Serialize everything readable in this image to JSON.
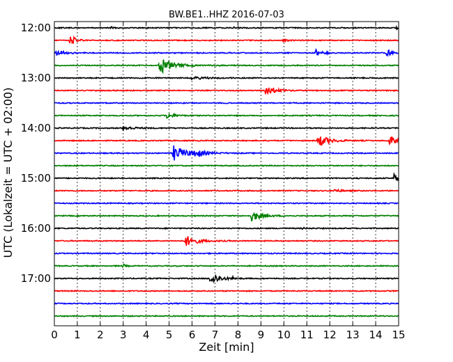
{
  "chart_data": {
    "type": "line",
    "title": "BW.BE1..HHZ 2016-07-03",
    "xlabel": "Zeit  [min]",
    "ylabel": "UTC (Lokalzeit = UTC + 02:00)",
    "xlim": [
      0,
      15
    ],
    "x_ticks": [
      "0",
      "1",
      "2",
      "3",
      "4",
      "5",
      "6",
      "7",
      "8",
      "9",
      "10",
      "11",
      "12",
      "13",
      "14",
      "15"
    ],
    "y_ticks": [
      "12:00",
      "13:00",
      "14:00",
      "15:00",
      "16:00",
      "17:00"
    ],
    "grid": true,
    "colors": [
      "#000000",
      "#ff0000",
      "#0000ff",
      "#008000"
    ],
    "traces": [
      {
        "start": "12:00",
        "events": [
          {
            "t": 2.5,
            "amp": 0.25,
            "dur": 0.05
          },
          {
            "t": 7.8,
            "amp": 0.1,
            "dur": 0.2
          },
          {
            "t": 14.9,
            "amp": 0.3,
            "dur": 0.05
          }
        ]
      },
      {
        "start": "12:15",
        "events": [
          {
            "t": 0.7,
            "amp": 0.85,
            "dur": 0.2
          },
          {
            "t": 10.0,
            "amp": 0.12,
            "dur": 0.2
          }
        ]
      },
      {
        "start": "12:30",
        "events": [
          {
            "t": 0.1,
            "amp": 0.55,
            "dur": 0.25
          },
          {
            "t": 11.4,
            "amp": 0.55,
            "dur": 0.25
          },
          {
            "t": 14.5,
            "amp": 0.5,
            "dur": 0.2
          }
        ]
      },
      {
        "start": "12:45",
        "events": [
          {
            "t": 4.6,
            "amp": 1.2,
            "dur": 0.55
          }
        ]
      },
      {
        "start": "13:00",
        "events": [
          {
            "t": 6.0,
            "amp": 0.25,
            "dur": 0.5
          }
        ]
      },
      {
        "start": "13:15",
        "events": [
          {
            "t": 9.2,
            "amp": 0.5,
            "dur": 0.45
          }
        ]
      },
      {
        "start": "13:30",
        "events": []
      },
      {
        "start": "13:45",
        "events": [
          {
            "t": 4.9,
            "amp": 0.4,
            "dur": 0.3
          }
        ]
      },
      {
        "start": "14:00",
        "events": [
          {
            "t": 3.0,
            "amp": 0.35,
            "dur": 0.35
          }
        ]
      },
      {
        "start": "14:15",
        "events": [
          {
            "t": 11.5,
            "amp": 0.9,
            "dur": 0.4
          },
          {
            "t": 14.6,
            "amp": 0.6,
            "dur": 0.35
          }
        ]
      },
      {
        "start": "14:30",
        "events": [
          {
            "t": 5.2,
            "amp": 1.1,
            "dur": 0.5
          },
          {
            "t": 6.1,
            "amp": 0.55,
            "dur": 0.35
          }
        ]
      },
      {
        "start": "14:45",
        "events": []
      },
      {
        "start": "15:00",
        "events": [
          {
            "t": 14.8,
            "amp": 0.6,
            "dur": 0.3
          }
        ]
      },
      {
        "start": "15:15",
        "events": [
          {
            "t": 12.2,
            "amp": 0.2,
            "dur": 0.3
          }
        ]
      },
      {
        "start": "15:30",
        "events": []
      },
      {
        "start": "15:45",
        "events": [
          {
            "t": 8.6,
            "amp": 0.75,
            "dur": 0.4
          }
        ]
      },
      {
        "start": "16:00",
        "events": [
          {
            "t": 10.8,
            "amp": 0.1,
            "dur": 0.2
          }
        ]
      },
      {
        "start": "16:15",
        "events": [
          {
            "t": 5.7,
            "amp": 0.8,
            "dur": 0.45
          }
        ]
      },
      {
        "start": "16:30",
        "events": []
      },
      {
        "start": "16:45",
        "events": [
          {
            "t": 3.0,
            "amp": 0.3,
            "dur": 0.08
          }
        ]
      },
      {
        "start": "17:00",
        "events": [
          {
            "t": 6.8,
            "amp": 0.95,
            "dur": 0.35
          },
          {
            "t": 7.8,
            "amp": 0.3,
            "dur": 0.05
          }
        ]
      },
      {
        "start": "17:15",
        "events": []
      },
      {
        "start": "17:30",
        "events": []
      },
      {
        "start": "17:45",
        "events": []
      }
    ]
  }
}
